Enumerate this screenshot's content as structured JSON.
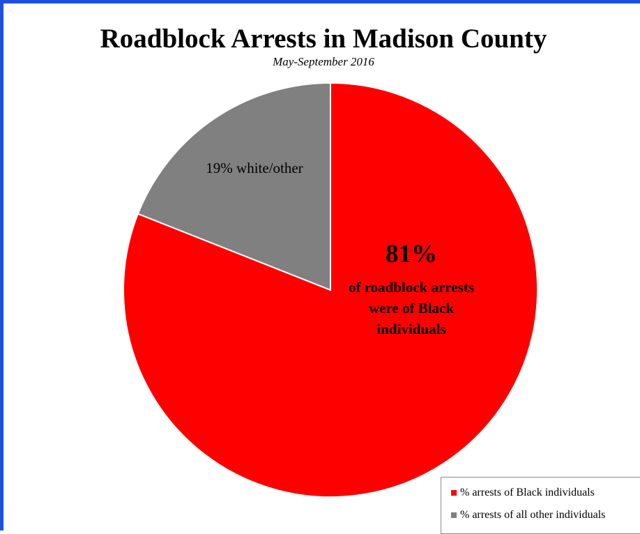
{
  "chart_data": {
    "type": "pie",
    "title": "Roadblock Arrests in Madison County",
    "subtitle": "May-September 2016",
    "slices": [
      {
        "name": "% arrests of Black individuals",
        "value": 81,
        "color": "#ff0000",
        "label_big": "81%",
        "label_text": "of roadblock arrests were of Black individuals"
      },
      {
        "name": "% arrests of all other individuals",
        "value": 19,
        "color": "#808080",
        "label_text": "19% white/other"
      }
    ],
    "legend": {
      "position": "bottom-right",
      "items": [
        {
          "label": "% arrests of Black individuals",
          "color": "#ff0000"
        },
        {
          "label": "% arrests of all other individuals",
          "color": "#808080"
        }
      ]
    }
  },
  "frame": {
    "border_color": "#1f4fe0"
  }
}
